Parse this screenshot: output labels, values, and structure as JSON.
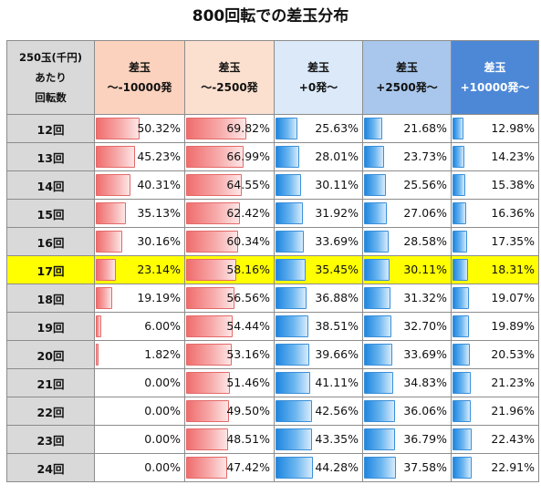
{
  "title": "800回転での差玉分布",
  "header": {
    "row_label_lines": [
      "250玉(千円)",
      "あたり",
      "回転数"
    ],
    "columns": [
      {
        "line1": "差玉",
        "line2": "～-10000発"
      },
      {
        "line1": "差玉",
        "line2": "～-2500発"
      },
      {
        "line1": "差玉",
        "line2": "+0発～"
      },
      {
        "line1": "差玉",
        "line2": "+2500発～"
      },
      {
        "line1": "差玉",
        "line2": "+10000発～"
      }
    ]
  },
  "colors": {
    "header_gray": "#d9d9d9",
    "header_col1": "#fbd2bd",
    "header_col2": "#fce0cf",
    "header_col3": "#dbe9f9",
    "header_col4": "#a9c7ec",
    "header_col5": "#4d88d6",
    "highlight_row": "#ffff00",
    "negative_bar": "#f06d6d",
    "positive_bar": "#1f86e0"
  },
  "highlight_row_label": "17回",
  "chart_data": {
    "type": "table",
    "title": "800回転での差玉分布",
    "row_header": "250玉(千円) あたり 回転数",
    "columns": [
      "差玉 ～-10000発",
      "差玉 ～-2500発",
      "差玉 +0発～",
      "差玉 +2500発～",
      "差玉 +10000発～"
    ],
    "rows": [
      {
        "label": "12回",
        "values": [
          "50.32%",
          "69.82%",
          "25.63%",
          "21.68%",
          "12.98%"
        ],
        "numbers": [
          50.32,
          69.82,
          25.63,
          21.68,
          12.98
        ]
      },
      {
        "label": "13回",
        "values": [
          "45.23%",
          "66.99%",
          "28.01%",
          "23.73%",
          "14.23%"
        ],
        "numbers": [
          45.23,
          66.99,
          28.01,
          23.73,
          14.23
        ]
      },
      {
        "label": "14回",
        "values": [
          "40.31%",
          "64.55%",
          "30.11%",
          "25.56%",
          "15.38%"
        ],
        "numbers": [
          40.31,
          64.55,
          30.11,
          25.56,
          15.38
        ]
      },
      {
        "label": "15回",
        "values": [
          "35.13%",
          "62.42%",
          "31.92%",
          "27.06%",
          "16.36%"
        ],
        "numbers": [
          35.13,
          62.42,
          31.92,
          27.06,
          16.36
        ]
      },
      {
        "label": "16回",
        "values": [
          "30.16%",
          "60.34%",
          "33.69%",
          "28.58%",
          "17.35%"
        ],
        "numbers": [
          30.16,
          60.34,
          33.69,
          28.58,
          17.35
        ]
      },
      {
        "label": "17回",
        "values": [
          "23.14%",
          "58.16%",
          "35.45%",
          "30.11%",
          "18.31%"
        ],
        "numbers": [
          23.14,
          58.16,
          35.45,
          30.11,
          18.31
        ]
      },
      {
        "label": "18回",
        "values": [
          "19.19%",
          "56.56%",
          "36.88%",
          "31.32%",
          "19.07%"
        ],
        "numbers": [
          19.19,
          56.56,
          36.88,
          31.32,
          19.07
        ]
      },
      {
        "label": "19回",
        "values": [
          "6.00%",
          "54.44%",
          "38.51%",
          "32.70%",
          "19.89%"
        ],
        "numbers": [
          6.0,
          54.44,
          38.51,
          32.7,
          19.89
        ]
      },
      {
        "label": "20回",
        "values": [
          "1.82%",
          "53.16%",
          "39.66%",
          "33.69%",
          "20.53%"
        ],
        "numbers": [
          1.82,
          53.16,
          39.66,
          33.69,
          20.53
        ]
      },
      {
        "label": "21回",
        "values": [
          "0.00%",
          "51.46%",
          "41.11%",
          "34.83%",
          "21.23%"
        ],
        "numbers": [
          0.0,
          51.46,
          41.11,
          34.83,
          21.23
        ]
      },
      {
        "label": "22回",
        "values": [
          "0.00%",
          "49.50%",
          "42.56%",
          "36.06%",
          "21.96%"
        ],
        "numbers": [
          0.0,
          49.5,
          42.56,
          36.06,
          21.96
        ]
      },
      {
        "label": "23回",
        "values": [
          "0.00%",
          "48.51%",
          "43.35%",
          "36.79%",
          "22.43%"
        ],
        "numbers": [
          0.0,
          48.51,
          43.35,
          36.79,
          22.43
        ]
      },
      {
        "label": "24回",
        "values": [
          "0.00%",
          "47.42%",
          "44.28%",
          "37.58%",
          "22.91%"
        ],
        "numbers": [
          0.0,
          47.42,
          44.28,
          37.58,
          22.91
        ]
      }
    ],
    "bar_scale_max": 100
  }
}
